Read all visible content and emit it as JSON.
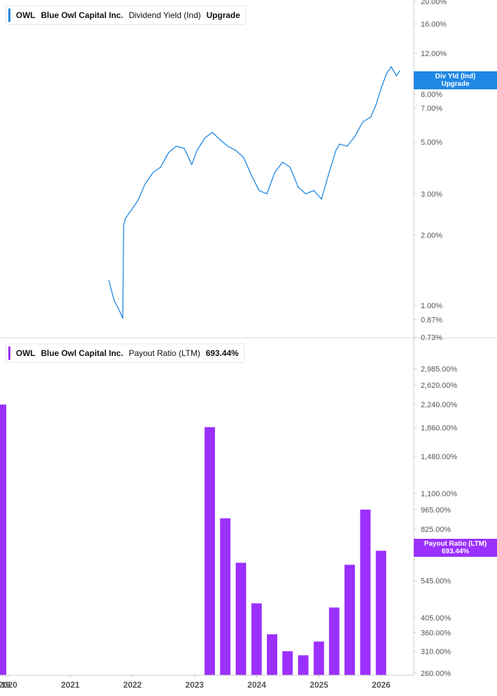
{
  "legend_top": {
    "ticker": "OWL",
    "company": "Blue Owl Capital Inc.",
    "metric": "Dividend Yield (Ind)",
    "extra": "Upgrade",
    "color": "#1e88e5"
  },
  "legend_bottom": {
    "ticker": "OWL",
    "company": "Blue Owl Capital Inc.",
    "metric": "Payout Ratio (LTM)",
    "extra": "693.44%",
    "color": "#9b30ff"
  },
  "tag_top": {
    "line1": "Div Yld (Ind)",
    "line2": "Upgrade",
    "color": "#1e88e5"
  },
  "tag_bottom": {
    "line1": "Payout Ratio (LTM)",
    "line2": "693.44%",
    "color": "#9b30ff"
  },
  "chart_data": [
    {
      "type": "line",
      "name": "Dividend Yield (Ind)",
      "y_scale": "log",
      "ylim": [
        0.73,
        20.0
      ],
      "y_ticks": [
        {
          "v": 20.0,
          "label": "20.00%"
        },
        {
          "v": 16.0,
          "label": "16.00%"
        },
        {
          "v": 12.0,
          "label": "12.00%"
        },
        {
          "v": 8.0,
          "label": "8.00%"
        },
        {
          "v": 7.0,
          "label": "7.00%"
        },
        {
          "v": 5.0,
          "label": "5.00%"
        },
        {
          "v": 3.0,
          "label": "3.00%"
        },
        {
          "v": 2.0,
          "label": "2.00%"
        },
        {
          "v": 1.0,
          "label": "1.00%"
        },
        {
          "v": 0.87,
          "label": "0.87%"
        },
        {
          "v": 0.73,
          "label": "0.73%"
        }
      ],
      "x": [
        "2021-08-15",
        "2021-09-15",
        "2021-10-10",
        "2021-10-25",
        "2021-11-05",
        "2021-11-10",
        "2021-11-20",
        "2021-12-15",
        "2022-02-01",
        "2022-03-15",
        "2022-05-01",
        "2022-06-15",
        "2022-08-01",
        "2022-09-15",
        "2022-11-01",
        "2022-12-15",
        "2023-01-15",
        "2023-03-01",
        "2023-04-15",
        "2023-06-01",
        "2023-07-15",
        "2023-09-01",
        "2023-10-15",
        "2023-12-01",
        "2024-01-15",
        "2024-03-01",
        "2024-04-15",
        "2024-06-01",
        "2024-07-15",
        "2024-09-01",
        "2024-10-15",
        "2024-12-01",
        "2025-01-15",
        "2025-03-01",
        "2025-04-10",
        "2025-05-01",
        "2025-06-15",
        "2025-08-01",
        "2025-09-15",
        "2025-11-01",
        "2025-12-01",
        "2026-01-01",
        "2026-02-01",
        "2026-03-01",
        "2026-04-01",
        "2026-04-20"
      ],
      "values": [
        1.28,
        1.05,
        0.97,
        0.92,
        0.88,
        2.2,
        2.35,
        2.5,
        2.8,
        3.3,
        3.7,
        3.9,
        4.5,
        4.8,
        4.7,
        4.0,
        4.6,
        5.2,
        5.5,
        5.1,
        4.8,
        4.6,
        4.3,
        3.6,
        3.1,
        3.0,
        3.7,
        4.1,
        3.9,
        3.2,
        3.0,
        3.1,
        2.85,
        3.7,
        4.6,
        4.9,
        4.8,
        5.3,
        6.1,
        6.4,
        7.2,
        8.5,
        9.8,
        10.5,
        9.6,
        10.1
      ]
    },
    {
      "type": "bar",
      "name": "Payout Ratio (LTM)",
      "y_scale": "log",
      "ylim": [
        260,
        3200
      ],
      "y_ticks": [
        {
          "v": 2985,
          "label": "2,985.00%"
        },
        {
          "v": 2620,
          "label": "2,620.00%"
        },
        {
          "v": 2240,
          "label": "2,240.00%"
        },
        {
          "v": 1860,
          "label": "1,860.00%"
        },
        {
          "v": 1480,
          "label": "1,480.00%"
        },
        {
          "v": 1100,
          "label": "1,100.00%"
        },
        {
          "v": 965,
          "label": "965.00%"
        },
        {
          "v": 825,
          "label": "825.00%"
        },
        {
          "v": 545,
          "label": "545.00%"
        },
        {
          "v": 405,
          "label": "405.00%"
        },
        {
          "v": 360,
          "label": "360.00%"
        },
        {
          "v": 310,
          "label": "310.00%"
        },
        {
          "v": 260,
          "label": "260.00%"
        }
      ],
      "x": [
        "2019-12-31",
        "2023-03-31",
        "2023-06-30",
        "2023-09-30",
        "2023-12-31",
        "2024-03-31",
        "2024-06-30",
        "2024-09-30",
        "2024-12-31",
        "2025-03-31",
        "2025-06-30",
        "2025-09-30",
        "2025-12-31"
      ],
      "values": [
        2240,
        1870,
        900,
        630,
        455,
        355,
        310,
        300,
        335,
        440,
        620,
        965,
        693.44
      ]
    }
  ],
  "x_axis": {
    "ticks": [
      {
        "date": "2019-12-01",
        "label": "19"
      },
      {
        "date": "2020-01-01",
        "label": "2020"
      },
      {
        "date": "2021-01-01",
        "label": "2021"
      },
      {
        "date": "2022-01-01",
        "label": "2022"
      },
      {
        "date": "2023-01-01",
        "label": "2023"
      },
      {
        "date": "2024-01-01",
        "label": "2024"
      },
      {
        "date": "2025-01-01",
        "label": "2025"
      },
      {
        "date": "2026-01-01",
        "label": "2026"
      }
    ]
  },
  "colors": {
    "axis_text": "#555555",
    "axis_line": "#cccccc",
    "divider": "#d9d9d9"
  }
}
